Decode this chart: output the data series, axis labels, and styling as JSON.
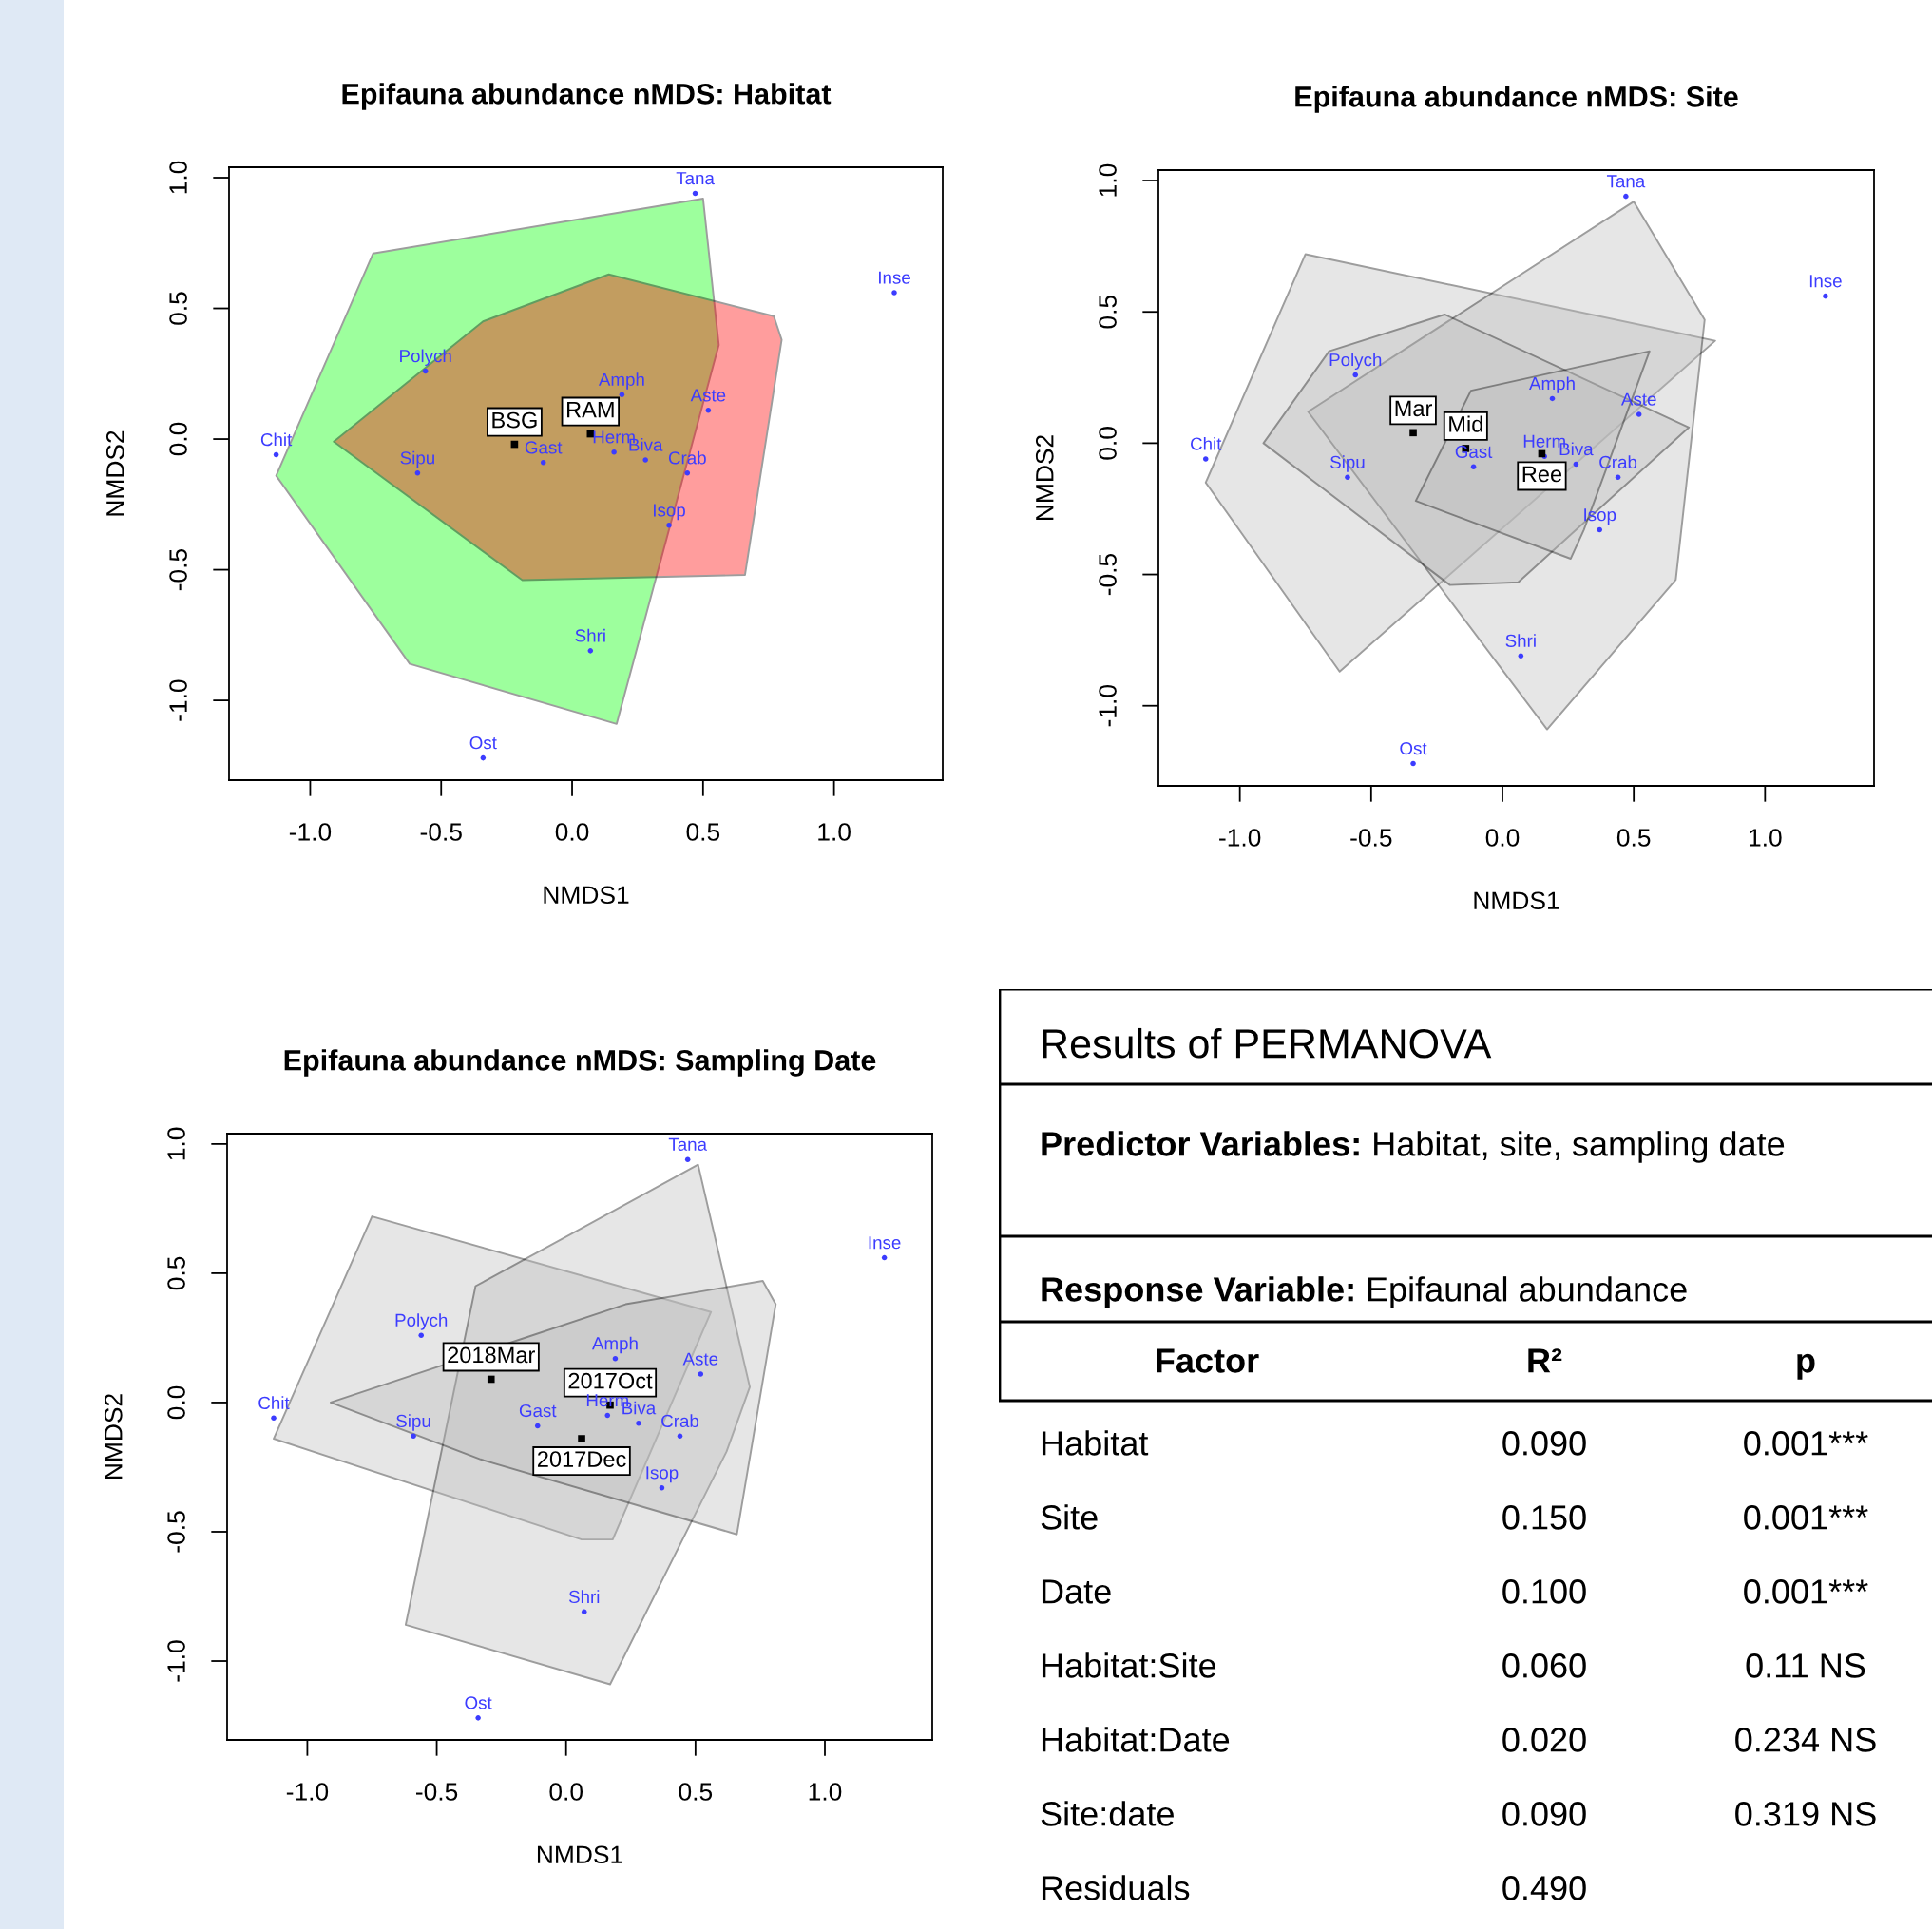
{
  "chart_data": [
    {
      "type": "area",
      "title": "Epifauna abundance nMDS: Habitat",
      "xlabel": "NMDS1",
      "ylabel": "NMDS2",
      "xlim": [
        -1.31,
        1.415
      ],
      "ylim": [
        -1.305,
        1.04
      ],
      "xticks": [
        {
          "value": -1,
          "label": "-1.0"
        },
        {
          "value": -0.5,
          "label": "-0.5"
        },
        {
          "value": 0,
          "label": "0.0"
        },
        {
          "value": 0.5,
          "label": "0.5"
        },
        {
          "value": 1,
          "label": "1.0"
        }
      ],
      "yticks": [
        {
          "value": -1,
          "label": "-1.0"
        },
        {
          "value": -0.5,
          "label": "-0.5"
        },
        {
          "value": 0,
          "label": "0.0"
        },
        {
          "value": 0.5,
          "label": "0.5"
        },
        {
          "value": 1,
          "label": "1.0"
        }
      ],
      "series": [
        {
          "type": "area",
          "color": "#00ff00",
          "x": [
            -0.76,
            0.5,
            0.56,
            0.17,
            -0.62,
            -1.13
          ],
          "values": [
            0.71,
            0.92,
            0.36,
            -1.09,
            -0.86,
            -0.14
          ]
        },
        {
          "type": "area",
          "color": "#ff0000",
          "x": [
            -0.91,
            -0.34,
            0.14,
            0.77,
            0.8,
            0.66,
            -0.19
          ],
          "values": [
            -0.01,
            0.45,
            0.63,
            0.47,
            0.38,
            -0.52,
            -0.54
          ]
        },
        {
          "type": "scatter",
          "marker": "square",
          "color": "#000000",
          "x": [
            -0.22,
            0.07
          ],
          "values": [
            -0.02,
            0.02
          ],
          "value_labels": [
            "BSG",
            "RAM"
          ]
        },
        {
          "type": "scatter",
          "marker": "circle",
          "color": "#3c3cff",
          "x": [
            0.47,
            1.23,
            -0.56,
            0.19,
            0.52,
            -1.13,
            -0.59,
            -0.11,
            0.16,
            0.28,
            0.44,
            0.37,
            0.07,
            -0.34
          ],
          "values": [
            0.94,
            0.56,
            0.26,
            0.17,
            0.11,
            -0.06,
            -0.13,
            -0.09,
            -0.05,
            -0.08,
            -0.13,
            -0.33,
            -0.81,
            -1.22
          ],
          "value_labels": [
            "Tana",
            "Inse",
            "Polych",
            "Amph",
            "Aste",
            "Chit",
            "Sipu",
            "Gast",
            "Herm",
            "Biva",
            "Crab",
            "Isop",
            "Shri",
            "Ost"
          ]
        }
      ]
    },
    {
      "type": "area",
      "title": "Epifauna abundance nMDS: Site",
      "xlabel": "NMDS1",
      "ylabel": "NMDS2",
      "xlim": [
        -1.31,
        1.415
      ],
      "ylim": [
        -1.305,
        1.04
      ],
      "xticks": [
        {
          "value": -1,
          "label": "-1.0"
        },
        {
          "value": -0.5,
          "label": "-0.5"
        },
        {
          "value": 0,
          "label": "0.0"
        },
        {
          "value": 0.5,
          "label": "0.5"
        },
        {
          "value": 1,
          "label": "1.0"
        }
      ],
      "yticks": [
        {
          "value": -1,
          "label": "-1.0"
        },
        {
          "value": -0.5,
          "label": "-0.5"
        },
        {
          "value": 0,
          "label": "0.0"
        },
        {
          "value": 0.5,
          "label": "0.5"
        },
        {
          "value": 1,
          "label": "1.0"
        }
      ],
      "series": [
        {
          "type": "area",
          "color": "#bebebe",
          "x": [
            -0.75,
            0.81,
            -0.62,
            -1.13
          ],
          "values": [
            0.72,
            0.39,
            -0.87,
            -0.15
          ]
        },
        {
          "type": "area",
          "color": "#bebebe",
          "x": [
            -0.74,
            0.5,
            0.77,
            0.66,
            0.17
          ],
          "values": [
            0.12,
            0.92,
            0.47,
            -0.52,
            -1.09
          ]
        },
        {
          "type": "area",
          "color": "#bebebe",
          "x": [
            -0.91,
            -0.66,
            -0.22,
            0.71,
            0.06,
            -0.2
          ],
          "values": [
            0.0,
            0.35,
            0.49,
            0.06,
            -0.53,
            -0.54
          ]
        },
        {
          "type": "area",
          "color": "#bebebe",
          "x": [
            -0.12,
            0.56,
            0.31,
            0.26,
            -0.33
          ],
          "values": [
            0.2,
            0.35,
            -0.33,
            -0.44,
            -0.22
          ]
        },
        {
          "type": "scatter",
          "marker": "square",
          "color": "#000000",
          "x": [
            -0.34,
            -0.14,
            0.15
          ],
          "values": [
            0.04,
            -0.02,
            -0.04
          ],
          "value_labels": [
            "Mar",
            "Mid",
            "Ree"
          ]
        },
        {
          "type": "scatter",
          "marker": "circle",
          "color": "#3c3cff",
          "x": [
            0.47,
            1.23,
            -0.56,
            0.19,
            0.52,
            -1.13,
            -0.59,
            -0.11,
            0.16,
            0.28,
            0.44,
            0.37,
            0.07,
            -0.34
          ],
          "values": [
            0.94,
            0.56,
            0.26,
            0.17,
            0.11,
            -0.06,
            -0.13,
            -0.09,
            -0.05,
            -0.08,
            -0.13,
            -0.33,
            -0.81,
            -1.22
          ],
          "value_labels": [
            "Tana",
            "Inse",
            "Polych",
            "Amph",
            "Aste",
            "Chit",
            "Sipu",
            "Gast",
            "Herm",
            "Biva",
            "Crab",
            "Isop",
            "Shri",
            "Ost"
          ]
        }
      ]
    },
    {
      "type": "area",
      "title": "Epifauna abundance nMDS: Sampling Date",
      "xlabel": "NMDS1",
      "ylabel": "NMDS2",
      "xlim": [
        -1.31,
        1.415
      ],
      "ylim": [
        -1.305,
        1.04
      ],
      "xticks": [
        {
          "value": -1,
          "label": "-1.0"
        },
        {
          "value": -0.5,
          "label": "-0.5"
        },
        {
          "value": 0,
          "label": "0.0"
        },
        {
          "value": 0.5,
          "label": "0.5"
        },
        {
          "value": 1,
          "label": "1.0"
        }
      ],
      "yticks": [
        {
          "value": -1,
          "label": "-1.0"
        },
        {
          "value": -0.5,
          "label": "-0.5"
        },
        {
          "value": 0,
          "label": "0.0"
        },
        {
          "value": 0.5,
          "label": "0.5"
        },
        {
          "value": 1,
          "label": "1.0"
        }
      ],
      "series": [
        {
          "type": "area",
          "color": "#bebebe",
          "x": [
            -0.75,
            0.56,
            0.18,
            0.06,
            -1.13
          ],
          "values": [
            0.72,
            0.35,
            -0.53,
            -0.53,
            -0.14
          ]
        },
        {
          "type": "area",
          "color": "#bebebe",
          "x": [
            -0.35,
            0.51,
            0.71,
            0.62,
            0.17,
            -0.62
          ],
          "values": [
            0.45,
            0.92,
            0.06,
            -0.19,
            -1.09,
            -0.86
          ]
        },
        {
          "type": "area",
          "color": "#bebebe",
          "x": [
            -0.91,
            0.23,
            0.76,
            0.81,
            0.66,
            -0.33
          ],
          "values": [
            0.0,
            0.38,
            0.47,
            0.38,
            -0.51,
            -0.22
          ]
        },
        {
          "type": "scatter",
          "marker": "square",
          "color": "#000000",
          "x": [
            -0.29,
            0.17,
            0.06
          ],
          "values": [
            0.09,
            -0.01,
            -0.14
          ],
          "value_labels": [
            "2018Mar",
            "2017Oct",
            "2017Dec"
          ]
        },
        {
          "type": "scatter",
          "marker": "circle",
          "color": "#3c3cff",
          "x": [
            0.47,
            1.23,
            -0.56,
            0.19,
            0.52,
            -1.13,
            -0.59,
            -0.11,
            0.16,
            0.28,
            0.44,
            0.37,
            0.07,
            -0.34
          ],
          "values": [
            0.94,
            0.56,
            0.26,
            0.17,
            0.11,
            -0.06,
            -0.13,
            -0.09,
            -0.05,
            -0.08,
            -0.13,
            -0.33,
            -0.81,
            -1.22
          ],
          "value_labels": [
            "Tana",
            "Inse",
            "Polych",
            "Amph",
            "Aste",
            "Chit",
            "Sipu",
            "Gast",
            "Herm",
            "Biva",
            "Crab",
            "Isop",
            "Shri",
            "Ost"
          ]
        }
      ]
    },
    {
      "type": "other",
      "title": "Results of PERMANOVA",
      "annotations": [
        "Predictor Variables: Habitat, site, sampling date",
        "Response Variable: Epifaunal abundance"
      ],
      "categories": [
        "Factor",
        "R²",
        "p"
      ],
      "y_categories": [
        "Habitat",
        "Site",
        "Date",
        "Habitat:Site",
        "Habitat:Date",
        "Site:date",
        "Residuals"
      ],
      "cell_labels": [
        [
          "0.090",
          "0.001***"
        ],
        [
          "0.150",
          "0.001***"
        ],
        [
          "0.100",
          "0.001***"
        ],
        [
          "0.060",
          "0.11 NS"
        ],
        [
          "0.020",
          "0.234 NS"
        ],
        [
          "0.090",
          "0.319 NS"
        ],
        [
          "0.490",
          null
        ]
      ]
    }
  ]
}
